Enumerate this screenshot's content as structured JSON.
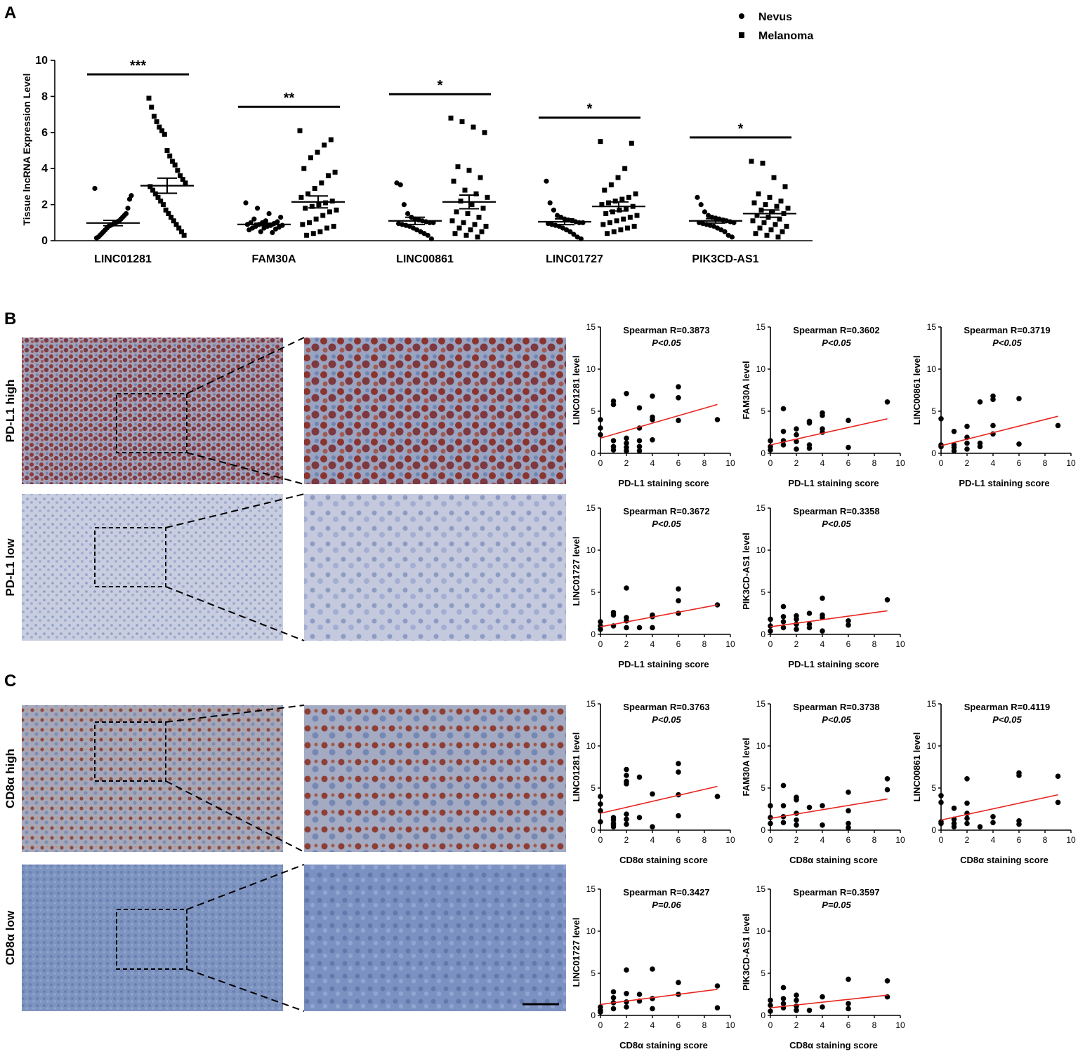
{
  "panel_labels": {
    "a": "A",
    "b": "B",
    "c": "C"
  },
  "legend": {
    "nevus": "Nevus",
    "melanoma": "Melanoma"
  },
  "colors": {
    "fit_line": "#e8251f",
    "points": "#000000",
    "stain_brown": "#8b3a2e",
    "stain_blue": "#7f95bb"
  },
  "ihc": {
    "rows": [
      {
        "label": "PD-L1 high",
        "stain": "brown-high"
      },
      {
        "label": "PD-L1 low",
        "stain": "blue-low"
      },
      {
        "label": "CD8α high",
        "stain": "mixed-high"
      },
      {
        "label": "CD8α low",
        "stain": "blue-dense"
      }
    ]
  },
  "chart_data": [
    {
      "type": "scatter",
      "panel": "A",
      "title": "",
      "xlabel": "",
      "ylabel": "Tissue lncRNA Expression Level",
      "ylim": [
        0,
        10
      ],
      "yticks": [
        0,
        2,
        4,
        6,
        8,
        10
      ],
      "categories": [
        "LINC01281",
        "FAM30A",
        "LINC00861",
        "LINC01727",
        "PIK3CD-AS1"
      ],
      "significance": [
        "***",
        "**",
        "*",
        "*",
        "*"
      ],
      "series": [
        {
          "name": "Nevus",
          "marker": "circle",
          "means": [
            0.98,
            0.9,
            1.1,
            1.05,
            1.1
          ],
          "sem": [
            0.15,
            0.07,
            0.2,
            0.16,
            0.12
          ],
          "values": [
            [
              2.9,
              2.5,
              2.3,
              1.8,
              1.5,
              1.4,
              1.3,
              1.2,
              1.1,
              1.05,
              1.0,
              0.95,
              0.9,
              0.85,
              0.8,
              0.7,
              0.6,
              0.5,
              0.4,
              0.3,
              0.2,
              0.15
            ],
            [
              2.1,
              1.8,
              1.5,
              1.3,
              1.2,
              1.1,
              1.05,
              1.0,
              1.0,
              0.95,
              0.9,
              0.9,
              0.85,
              0.85,
              0.8,
              0.8,
              0.75,
              0.7,
              0.7,
              0.65,
              0.6,
              0.5,
              0.45
            ],
            [
              3.2,
              3.1,
              2.0,
              1.5,
              1.3,
              1.2,
              1.15,
              1.1,
              1.05,
              1.0,
              1.0,
              0.95,
              0.9,
              0.85,
              0.8,
              0.7,
              0.6,
              0.5,
              0.4,
              0.3,
              0.1
            ],
            [
              3.3,
              2.1,
              1.7,
              1.4,
              1.3,
              1.2,
              1.15,
              1.1,
              1.05,
              1.0,
              1.0,
              0.95,
              0.9,
              0.85,
              0.8,
              0.7,
              0.6,
              0.5,
              0.35,
              0.2,
              0.1
            ],
            [
              2.4,
              2.0,
              1.6,
              1.4,
              1.3,
              1.25,
              1.2,
              1.15,
              1.1,
              1.05,
              1.0,
              1.0,
              0.95,
              0.9,
              0.85,
              0.8,
              0.7,
              0.6,
              0.5,
              0.3,
              0.2
            ]
          ]
        },
        {
          "name": "Melanoma",
          "marker": "square",
          "means": [
            3.05,
            2.15,
            2.15,
            1.9,
            1.5
          ],
          "sem": [
            0.42,
            0.33,
            0.38,
            0.25,
            0.2
          ],
          "values": [
            [
              7.9,
              7.4,
              6.9,
              6.6,
              6.3,
              6.1,
              5.9,
              5.0,
              4.7,
              4.4,
              4.2,
              3.9,
              3.6,
              3.4,
              3.2,
              3.0,
              2.8,
              2.6,
              2.4,
              2.2,
              2.0,
              1.7,
              1.5,
              1.3,
              1.1,
              0.9,
              0.7,
              0.5,
              0.3
            ],
            [
              6.1,
              5.6,
              5.3,
              4.9,
              4.6,
              4.0,
              3.8,
              3.6,
              3.2,
              2.9,
              2.6,
              2.4,
              2.2,
              2.1,
              2.0,
              1.9,
              1.8,
              1.7,
              1.6,
              1.4,
              1.2,
              1.0,
              0.9,
              0.8,
              0.7,
              0.5,
              0.4,
              0.3
            ],
            [
              6.8,
              6.6,
              6.3,
              6.0,
              4.1,
              3.9,
              3.5,
              3.3,
              2.8,
              2.6,
              2.4,
              2.2,
              2.0,
              1.8,
              1.6,
              1.5,
              1.3,
              1.1,
              1.0,
              0.9,
              0.8,
              0.7,
              0.6,
              0.5,
              0.4,
              0.3,
              0.2
            ],
            [
              5.5,
              5.4,
              4.0,
              3.5,
              3.1,
              2.8,
              2.6,
              2.4,
              2.3,
              2.2,
              2.1,
              2.0,
              1.9,
              1.8,
              1.7,
              1.6,
              1.5,
              1.4,
              1.3,
              1.2,
              1.1,
              1.0,
              0.9,
              0.8,
              0.7,
              0.6,
              0.5,
              0.4
            ],
            [
              4.4,
              4.3,
              3.5,
              3.0,
              2.6,
              2.4,
              2.2,
              2.1,
              2.0,
              1.9,
              1.8,
              1.7,
              1.6,
              1.5,
              1.4,
              1.3,
              1.2,
              1.1,
              1.0,
              0.9,
              0.8,
              0.7,
              0.6,
              0.5,
              0.4,
              0.3,
              0.2
            ]
          ]
        }
      ]
    },
    {
      "type": "scatter",
      "panel": "B",
      "title": "Spearman R=0.3873",
      "pvalue": "P<0.05",
      "xlabel": "PD-L1 staining score",
      "ylabel": "LINC01281 level",
      "xlim": [
        0,
        10
      ],
      "ylim": [
        0,
        15
      ],
      "x": [
        0,
        0,
        0,
        1,
        1,
        1,
        1,
        1,
        2,
        2,
        2,
        2,
        2,
        3,
        3,
        3,
        3,
        3,
        4,
        4,
        4,
        4,
        6,
        6,
        6,
        9
      ],
      "y": [
        4.0,
        3.0,
        2.2,
        6.2,
        5.8,
        1.5,
        0.8,
        0.4,
        7.1,
        1.8,
        1.2,
        0.7,
        0.3,
        5.4,
        3.0,
        1.5,
        0.8,
        0.3,
        6.8,
        4.3,
        4.0,
        1.6,
        7.9,
        6.6,
        3.9,
        4.0
      ],
      "fit": {
        "x": [
          0,
          9
        ],
        "y": [
          1.8,
          5.8
        ]
      }
    },
    {
      "type": "scatter",
      "panel": "B",
      "title": "Spearman R=0.3602",
      "pvalue": "P<0.05",
      "xlabel": "PD-L1 staining score",
      "ylabel": "FAM30A level",
      "xlim": [
        0,
        10
      ],
      "ylim": [
        0,
        15
      ],
      "x": [
        0,
        0,
        0,
        1,
        1,
        1,
        1,
        2,
        2,
        2,
        2,
        3,
        3,
        3,
        3,
        4,
        4,
        4,
        4,
        6,
        6,
        9
      ],
      "y": [
        1.5,
        0.8,
        0.4,
        5.3,
        2.6,
        1.5,
        1.0,
        2.9,
        2.2,
        1.4,
        0.5,
        3.8,
        3.6,
        1.0,
        0.6,
        4.8,
        4.5,
        2.9,
        2.5,
        3.9,
        0.7,
        6.1
      ],
      "fit": {
        "x": [
          0,
          9
        ],
        "y": [
          1.0,
          4.1
        ]
      }
    },
    {
      "type": "scatter",
      "panel": "B",
      "title": "Spearman R=0.3719",
      "pvalue": "P<0.05",
      "xlabel": "PD-L1 staining score",
      "ylabel": "LINC00861 level",
      "xlim": [
        0,
        10
      ],
      "ylim": [
        0,
        15
      ],
      "x": [
        0,
        0,
        0,
        1,
        1,
        1,
        1,
        2,
        2,
        2,
        2,
        3,
        3,
        3,
        4,
        4,
        4,
        4,
        6,
        6,
        9
      ],
      "y": [
        4.1,
        1.0,
        0.8,
        2.6,
        1.0,
        0.7,
        0.3,
        3.2,
        1.9,
        1.2,
        0.5,
        6.1,
        1.2,
        0.8,
        6.8,
        6.4,
        3.3,
        2.3,
        6.5,
        1.1,
        3.3
      ],
      "fit": {
        "x": [
          0,
          9
        ],
        "y": [
          0.9,
          4.4
        ]
      }
    },
    {
      "type": "scatter",
      "panel": "B",
      "title": "Spearman R=0.3672",
      "pvalue": "P<0.05",
      "xlabel": "PD-L1 staining score",
      "ylabel": "LINC01727 level",
      "xlim": [
        0,
        10
      ],
      "ylim": [
        0,
        15
      ],
      "x": [
        0,
        0,
        0,
        1,
        1,
        1,
        2,
        2,
        2,
        2,
        3,
        4,
        4,
        4,
        6,
        6,
        6,
        9
      ],
      "y": [
        1.5,
        1.0,
        0.6,
        2.6,
        2.3,
        1.0,
        5.5,
        2.0,
        1.6,
        0.8,
        0.8,
        2.3,
        2.1,
        0.8,
        5.4,
        4.0,
        2.5,
        3.5
      ],
      "fit": {
        "x": [
          0,
          9
        ],
        "y": [
          0.9,
          3.5
        ]
      }
    },
    {
      "type": "scatter",
      "panel": "B",
      "title": "Spearman R=0.3358",
      "pvalue": "P<0.05",
      "xlabel": "PD-L1 staining score",
      "ylabel": "PIK3CD-AS1 level",
      "xlim": [
        0,
        10
      ],
      "ylim": [
        0,
        15
      ],
      "x": [
        0,
        0,
        0,
        1,
        1,
        1,
        1,
        2,
        2,
        2,
        2,
        3,
        3,
        3,
        4,
        4,
        4,
        4,
        6,
        6,
        9
      ],
      "y": [
        1.8,
        1.0,
        0.4,
        3.3,
        2.1,
        1.5,
        0.8,
        2.2,
        1.8,
        1.2,
        0.6,
        2.5,
        1.2,
        0.8,
        4.3,
        2.3,
        2.0,
        0.4,
        1.6,
        1.1,
        4.1
      ],
      "fit": {
        "x": [
          0,
          9
        ],
        "y": [
          0.9,
          2.8
        ]
      }
    },
    {
      "type": "scatter",
      "panel": "C",
      "title": "Spearman R=0.3763",
      "pvalue": "P<0.05",
      "xlabel": "CD8α staining score",
      "ylabel": "LINC01281 level",
      "xlim": [
        0,
        10
      ],
      "ylim": [
        0,
        15
      ],
      "x": [
        0,
        0,
        0,
        0,
        1,
        1,
        1,
        1,
        1,
        2,
        2,
        2,
        2,
        2,
        2,
        2,
        3,
        3,
        4,
        4,
        6,
        6,
        6,
        6,
        9,
        9
      ],
      "y": [
        4.0,
        3.1,
        2.3,
        1.0,
        1.5,
        1.2,
        0.8,
        0.6,
        0.4,
        7.2,
        6.5,
        5.8,
        5.5,
        1.9,
        1.3,
        0.7,
        6.3,
        1.5,
        4.3,
        0.4,
        7.9,
        6.9,
        4.2,
        1.7,
        4.0,
        4.0
      ],
      "fit": {
        "x": [
          0,
          9
        ],
        "y": [
          2.0,
          5.2
        ]
      }
    },
    {
      "type": "scatter",
      "panel": "C",
      "title": "Spearman R=0.3738",
      "pvalue": "P<0.05",
      "xlabel": "CD8α staining score",
      "ylabel": "FAM30A level",
      "xlim": [
        0,
        10
      ],
      "ylim": [
        0,
        15
      ],
      "x": [
        0,
        0,
        0,
        1,
        1,
        1,
        1,
        2,
        2,
        2,
        2,
        2,
        3,
        4,
        4,
        6,
        6,
        6,
        6,
        9,
        9
      ],
      "y": [
        2.9,
        1.5,
        0.8,
        5.3,
        2.9,
        1.6,
        0.9,
        3.9,
        3.6,
        2.0,
        1.2,
        0.6,
        2.7,
        2.9,
        0.6,
        4.5,
        2.3,
        0.8,
        0.3,
        6.1,
        4.8
      ],
      "fit": {
        "x": [
          0,
          9
        ],
        "y": [
          1.4,
          3.7
        ]
      }
    },
    {
      "type": "scatter",
      "panel": "C",
      "title": "Spearman R=0.4119",
      "pvalue": "P<0.05",
      "xlabel": "CD8α staining score",
      "ylabel": "LINC00861 level",
      "xlim": [
        0,
        10
      ],
      "ylim": [
        0,
        15
      ],
      "x": [
        0,
        0,
        0,
        0,
        1,
        1,
        1,
        1,
        2,
        2,
        2,
        2,
        2,
        3,
        4,
        4,
        6,
        6,
        6,
        6,
        9,
        9
      ],
      "y": [
        4.1,
        3.3,
        1.0,
        0.8,
        2.6,
        1.3,
        0.8,
        0.4,
        6.1,
        3.2,
        2.0,
        1.4,
        0.8,
        0.4,
        1.6,
        0.9,
        6.8,
        6.5,
        1.1,
        0.7,
        6.4,
        3.3
      ],
      "fit": {
        "x": [
          0,
          9
        ],
        "y": [
          1.2,
          4.2
        ]
      }
    },
    {
      "type": "scatter",
      "panel": "C",
      "title": "Spearman R=0.3427",
      "pvalue": "P=0.06",
      "xlabel": "CD8α staining score",
      "ylabel": "LINC01727 level",
      "xlim": [
        0,
        10
      ],
      "ylim": [
        0,
        15
      ],
      "x": [
        0,
        0,
        0,
        1,
        1,
        1,
        1,
        2,
        2,
        2,
        2,
        3,
        3,
        4,
        4,
        4,
        6,
        6,
        9,
        9
      ],
      "y": [
        1.0,
        0.6,
        0.4,
        2.8,
        2.1,
        1.5,
        0.8,
        5.4,
        2.6,
        1.6,
        1.0,
        2.5,
        1.7,
        5.5,
        2.0,
        0.8,
        3.9,
        2.5,
        3.5,
        0.9
      ],
      "fit": {
        "x": [
          0,
          9
        ],
        "y": [
          1.3,
          3.1
        ]
      }
    },
    {
      "type": "scatter",
      "panel": "C",
      "title": "Spearman R=0.3597",
      "pvalue": "P=0.05",
      "xlabel": "CD8α staining score",
      "ylabel": "PIK3CD-AS1 level",
      "xlim": [
        0,
        10
      ],
      "ylim": [
        0,
        15
      ],
      "x": [
        0,
        0,
        0,
        1,
        1,
        1,
        1,
        2,
        2,
        2,
        2,
        3,
        4,
        4,
        6,
        6,
        6,
        9,
        9
      ],
      "y": [
        1.8,
        1.2,
        0.5,
        3.3,
        2.0,
        1.4,
        0.9,
        2.4,
        1.8,
        1.1,
        0.6,
        0.6,
        2.2,
        1.0,
        4.3,
        1.4,
        0.8,
        4.1,
        2.2
      ],
      "fit": {
        "x": [
          0,
          9
        ],
        "y": [
          0.9,
          2.4
        ]
      }
    }
  ]
}
